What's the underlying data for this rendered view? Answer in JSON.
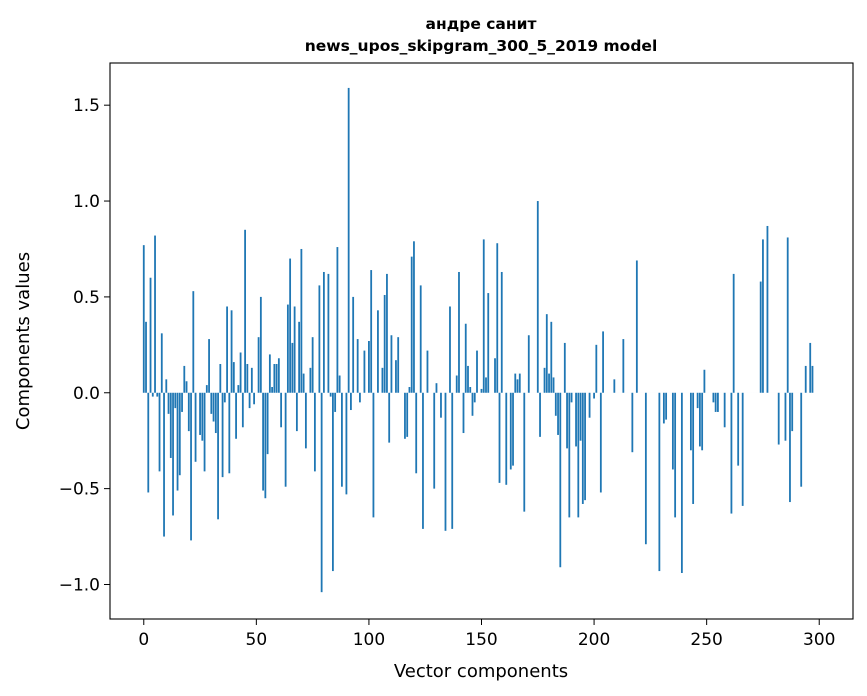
{
  "chart_data": {
    "type": "bar",
    "title": "андре санит",
    "subtitle": "news_upos_skipgram_300_5_2019 model",
    "xlabel": "Vector components",
    "ylabel": "Components values",
    "xlim": [
      -15,
      315
    ],
    "ylim": [
      -1.18,
      1.72
    ],
    "xticks": [
      0,
      50,
      100,
      150,
      200,
      250,
      300
    ],
    "xtick_labels": [
      "0",
      "50",
      "100",
      "150",
      "200",
      "250",
      "300"
    ],
    "yticks": [
      -1.0,
      -0.5,
      0.0,
      0.5,
      1.0,
      1.5
    ],
    "ytick_labels": [
      "−1.0",
      "−0.5",
      "0.0",
      "0.5",
      "1.0",
      "1.5"
    ],
    "grid": false,
    "legend": "none",
    "bar_color": "#1f77b4",
    "series": [
      {
        "values": [
          0.77,
          0.37,
          -0.52,
          0.6,
          -0.02,
          0.82,
          -0.02,
          -0.41,
          0.31,
          -0.75,
          0.07,
          -0.11,
          -0.34,
          -0.64,
          -0.08,
          -0.51,
          -0.43,
          -0.1,
          0.14,
          0.06,
          -0.2,
          -0.77,
          0.53,
          -0.36,
          0.0,
          -0.22,
          -0.25,
          -0.41,
          0.04,
          0.28,
          -0.11,
          -0.15,
          -0.21,
          -0.66,
          0.15,
          -0.44,
          -0.05,
          0.45,
          -0.42,
          0.43,
          0.16,
          -0.24,
          0.04,
          0.21,
          -0.18,
          0.85,
          0.15,
          -0.08,
          0.13,
          -0.06,
          0.0,
          0.29,
          0.5,
          -0.51,
          -0.55,
          -0.32,
          0.2,
          0.03,
          0.15,
          0.15,
          0.18,
          -0.18,
          0.0,
          -0.49,
          0.46,
          0.7,
          0.26,
          0.45,
          -0.2,
          0.37,
          0.75,
          0.1,
          -0.29,
          0.0,
          0.13,
          0.29,
          -0.41,
          0.0,
          0.56,
          -1.04,
          0.63,
          0.0,
          0.62,
          -0.02,
          -0.93,
          -0.1,
          0.76,
          0.09,
          -0.49,
          0.0,
          -0.53,
          1.59,
          -0.09,
          0.5,
          0.0,
          0.28,
          -0.05,
          0.0,
          0.22,
          0.0,
          0.27,
          0.64,
          -0.65,
          0.0,
          0.43,
          0.0,
          0.13,
          0.51,
          0.62,
          -0.26,
          0.3,
          0.0,
          0.17,
          0.29,
          0.0,
          0.0,
          -0.24,
          -0.23,
          0.03,
          0.71,
          0.79,
          -0.42,
          0.0,
          0.56,
          -0.71,
          0.0,
          0.22,
          0.0,
          0.0,
          -0.5,
          0.05,
          0.0,
          -0.13,
          0.0,
          -0.72,
          0.0,
          0.45,
          -0.71,
          0.0,
          0.09,
          0.63,
          0.0,
          -0.21,
          0.36,
          0.14,
          0.03,
          -0.12,
          -0.05,
          0.22,
          0.0,
          0.02,
          0.8,
          0.08,
          0.52,
          0.0,
          0.0,
          0.18,
          0.78,
          -0.47,
          0.63,
          0.0,
          -0.48,
          0.0,
          -0.4,
          -0.38,
          0.1,
          0.07,
          0.1,
          0.0,
          -0.62,
          0.0,
          0.3,
          0.0,
          0.0,
          0.0,
          1.0,
          -0.23,
          0.0,
          0.13,
          0.41,
          0.1,
          0.37,
          0.08,
          -0.12,
          -0.22,
          -0.91,
          0.0,
          0.26,
          -0.29,
          -0.65,
          -0.05,
          0.0,
          -0.28,
          -0.65,
          -0.25,
          -0.58,
          -0.56,
          0.0,
          -0.13,
          0.0,
          -0.03,
          0.25,
          0.0,
          -0.52,
          0.32,
          0.0,
          0.0,
          0.0,
          0.0,
          0.07,
          0.0,
          0.0,
          0.0,
          0.28,
          0.0,
          0.0,
          0.0,
          -0.31,
          0.0,
          0.69,
          0.0,
          0.0,
          0.0,
          -0.79,
          0.0,
          0.0,
          0.0,
          0.0,
          0.0,
          -0.93,
          0.0,
          -0.16,
          -0.14,
          0.0,
          0.0,
          -0.4,
          -0.65,
          0.0,
          0.0,
          -0.94,
          0.0,
          0.0,
          0.0,
          -0.3,
          -0.58,
          0.0,
          -0.08,
          -0.28,
          -0.3,
          0.12,
          0.0,
          0.0,
          0.0,
          -0.05,
          -0.1,
          -0.1,
          0.0,
          0.0,
          -0.18,
          0.0,
          0.0,
          -0.63,
          0.62,
          0.0,
          -0.38,
          0.0,
          -0.59,
          0.0,
          0.0,
          0.0,
          0.0,
          0.0,
          0.0,
          0.0,
          0.58,
          0.8,
          0.0,
          0.87,
          0.0,
          0.0,
          0.0,
          0.0,
          -0.27,
          0.0,
          0.0,
          -0.25,
          0.81,
          -0.57,
          -0.2,
          0.0,
          0.0,
          0.0,
          -0.49,
          0.0,
          0.14,
          0.0,
          0.26,
          0.14
        ]
      }
    ]
  }
}
